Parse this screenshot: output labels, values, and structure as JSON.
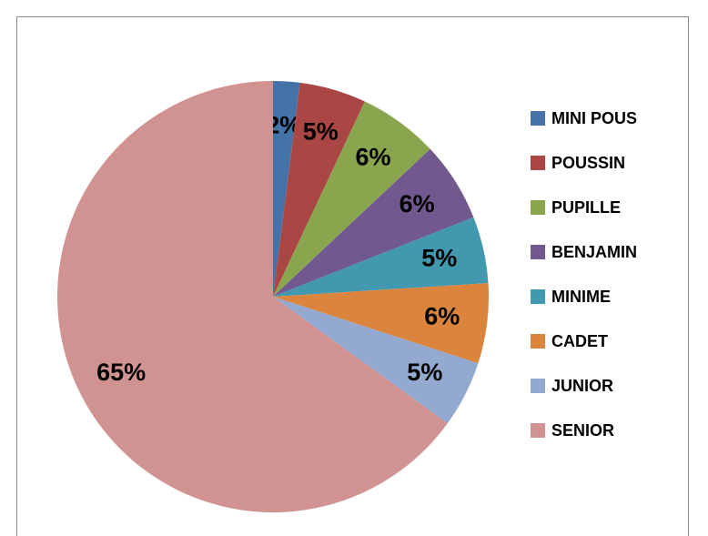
{
  "chart_data": {
    "type": "pie",
    "categories": [
      "MINI POUS",
      "POUSSIN",
      "PUPILLE",
      "BENJAMIN",
      "MINIME",
      "CADET",
      "JUNIOR",
      "SENIOR"
    ],
    "values": [
      2,
      5,
      6,
      6,
      5,
      6,
      5,
      65
    ],
    "value_labels": [
      "2%",
      "5%",
      "6%",
      "6%",
      "5%",
      "6%",
      "5%",
      "65%"
    ],
    "colors": [
      "#4572a7",
      "#aa4643",
      "#89a54e",
      "#71588f",
      "#4198af",
      "#db843d",
      "#93a9cf",
      "#d19392"
    ],
    "legend": "right"
  }
}
